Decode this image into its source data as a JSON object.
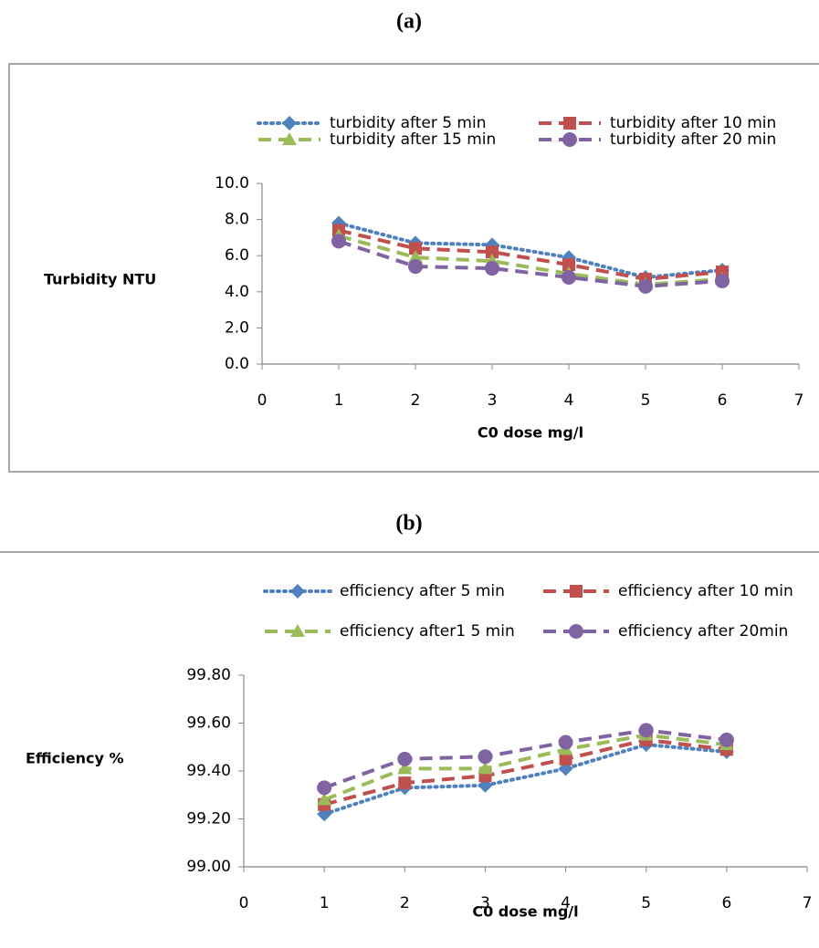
{
  "chart_data": [
    {
      "type": "line",
      "title": "(a)",
      "x_label": "C0 dose mg/l",
      "y_label": "Turbidity NTU",
      "x": [
        1,
        2,
        3,
        4,
        5,
        6
      ],
      "xlim": [
        0,
        7
      ],
      "xticks": [
        0,
        1,
        2,
        3,
        4,
        5,
        6,
        7
      ],
      "ylim": [
        0,
        10
      ],
      "yticks": [
        {
          "value": 0,
          "label": "0.0"
        },
        {
          "value": 2,
          "label": "2.0"
        },
        {
          "value": 4,
          "label": "4.0"
        },
        {
          "value": 6,
          "label": "6.0"
        },
        {
          "value": 8,
          "label": "8.0"
        },
        {
          "value": 10,
          "label": "10.0"
        }
      ],
      "grid": false,
      "series": [
        {
          "name": "turbidity after 5 min",
          "color": "#4f81bd",
          "dash": "dotted",
          "marker": "diamond",
          "values": [
            7.8,
            6.7,
            6.6,
            5.9,
            4.8,
            5.2
          ]
        },
        {
          "name": "turbidity after 10 min",
          "color": "#c0504d",
          "dash": "dashed",
          "marker": "square",
          "values": [
            7.4,
            6.4,
            6.2,
            5.5,
            4.7,
            5.1
          ]
        },
        {
          "name": "turbidity after 15 min",
          "color": "#9bbb59",
          "dash": "dashed",
          "marker": "triangle",
          "values": [
            7.1,
            5.9,
            5.7,
            5.0,
            4.4,
            4.7
          ]
        },
        {
          "name": "turbidity after 20 min",
          "color": "#8064a2",
          "dash": "dashed",
          "marker": "circle",
          "values": [
            6.8,
            5.4,
            5.3,
            4.8,
            4.3,
            4.6
          ]
        }
      ]
    },
    {
      "type": "line",
      "title": "(b)",
      "x_label": "C0 dose mg/l",
      "y_label": "Efficiency %",
      "x": [
        1,
        2,
        3,
        4,
        5,
        6
      ],
      "xlim": [
        0,
        7
      ],
      "xticks": [
        0,
        1,
        2,
        3,
        4,
        5,
        6,
        7
      ],
      "ylim": [
        99,
        99.8
      ],
      "yticks": [
        {
          "value": 99,
          "label": "99.00"
        },
        {
          "value": 99.2,
          "label": "99.20"
        },
        {
          "value": 99.4,
          "label": "99.40"
        },
        {
          "value": 99.6,
          "label": "99.60"
        },
        {
          "value": 99.8,
          "label": "99.80"
        }
      ],
      "grid": false,
      "series": [
        {
          "name": "efficiency after 5 min",
          "color": "#4f81bd",
          "dash": "dotted",
          "marker": "diamond",
          "values": [
            99.22,
            99.33,
            99.34,
            99.41,
            99.51,
            99.48
          ]
        },
        {
          "name": "efficiency after 10 min",
          "color": "#c0504d",
          "dash": "dashed",
          "marker": "square",
          "values": [
            99.26,
            99.35,
            99.38,
            99.45,
            99.53,
            99.49
          ]
        },
        {
          "name": "efficiency after1 5 min",
          "color": "#9bbb59",
          "dash": "dashed",
          "marker": "triangle",
          "values": [
            99.28,
            99.41,
            99.41,
            99.49,
            99.55,
            99.51
          ]
        },
        {
          "name": "efficiency after 20min",
          "color": "#8064a2",
          "dash": "dashed",
          "marker": "circle",
          "values": [
            99.33,
            99.45,
            99.46,
            99.52,
            99.57,
            99.53
          ]
        }
      ]
    }
  ]
}
